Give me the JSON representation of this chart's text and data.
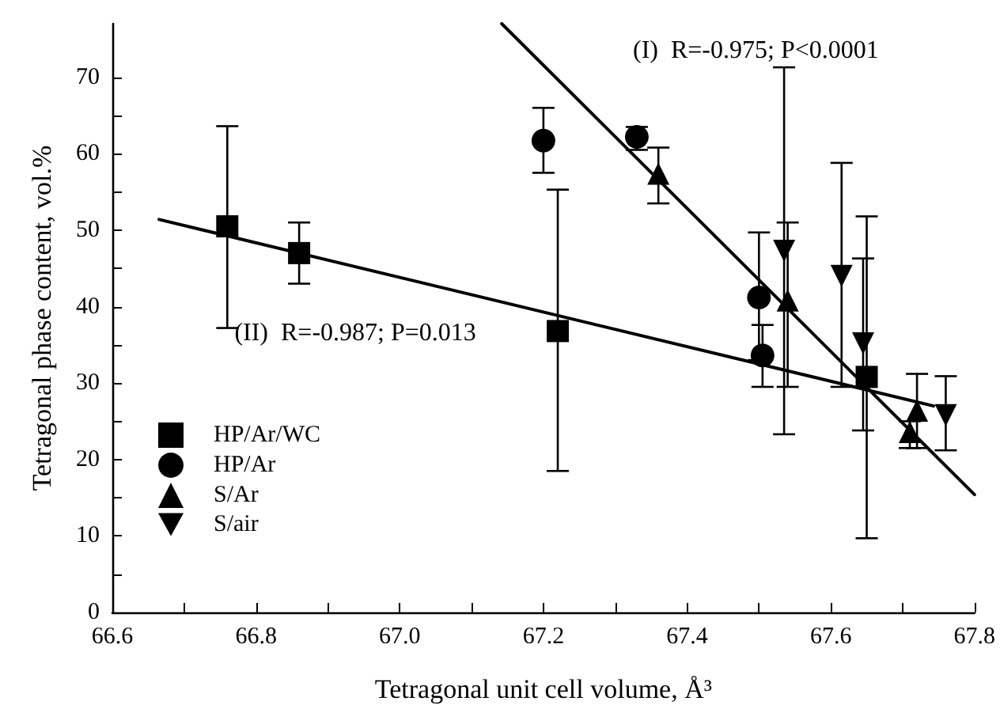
{
  "chart_data": {
    "type": "scatter",
    "xlabel": "Tetragonal unit cell volume, Å³",
    "ylabel": "Tetragonal phase content, vol.%",
    "xlim": [
      66.6,
      67.8
    ],
    "xticks": [
      66.6,
      66.8,
      {
        "value": 67,
        "label": "67.0"
      },
      67.2,
      67.4,
      67.6,
      67.8
    ],
    "ylim": [
      0,
      77
    ],
    "yticks": [
      0,
      10,
      20,
      30,
      40,
      50,
      60,
      70
    ],
    "grid": false,
    "legend": "left",
    "annotations": [
      "(I)  R=-0.975; P<0.0001",
      {
        "text": "(II)  R=-0.987; P=0.013",
        "x": 66.77,
        "y": 36.5
      }
    ],
    "series": [
      {
        "name": "HP/Ar/WC",
        "color": "#000000",
        "marker": "square",
        "x": [
          66.76,
          66.86,
          67.22,
          67.65
        ],
        "values": [
          50.5,
          47,
          36.8,
          30.8
        ],
        "errors": [
          [
            37.2,
            63.6
          ],
          [
            43,
            51
          ],
          [
            18.5,
            55.3
          ],
          [
            9.7,
            51.8
          ]
        ]
      },
      {
        "name": "HP/Ar",
        "color": "#000000",
        "marker": "circle",
        "x": [
          67.2,
          67.33,
          67.5,
          67.505
        ],
        "values": [
          61.7,
          62.2,
          41.2,
          33.6
        ],
        "errors": [
          [
            57.5,
            66
          ],
          [
            60.5,
            63.5
          ],
          [
            33,
            49.7
          ],
          [
            29.5,
            37.6
          ]
        ]
      },
      {
        "name": "S/Ar",
        "color": "#000000",
        "marker": "triangle",
        "x": [
          67.36,
          67.54,
          67.71,
          67.72
        ],
        "values": [
          57.4,
          40.8,
          23.6,
          26.4
        ],
        "errors": [
          [
            53.5,
            60.8
          ],
          [
            29.5,
            51
          ],
          [
            21.5,
            25
          ],
          [
            21.5,
            31.2
          ]
        ]
      },
      {
        "name": "S/air",
        "color": "#000000",
        "marker": "triangle-down",
        "x": [
          67.535,
          67.615,
          67.645,
          67.76
        ],
        "values": [
          47.3,
          44,
          35.2,
          25.8
        ],
        "errors": [
          [
            23.3,
            71.3
          ],
          [
            29.5,
            58.8
          ],
          [
            23.8,
            46.3
          ],
          [
            21.2,
            30.9
          ]
        ]
      },
      {
        "type": "line",
        "color": "#000000",
        "marker": "none",
        "x": [
          67.142,
          67.8
        ],
        "values": [
          77,
          15.4
        ]
      },
      {
        "type": "line",
        "color": "#000000",
        "marker": "none",
        "x": [
          66.665,
          67.743
        ],
        "values": [
          51.4,
          27.0
        ]
      }
    ]
  }
}
